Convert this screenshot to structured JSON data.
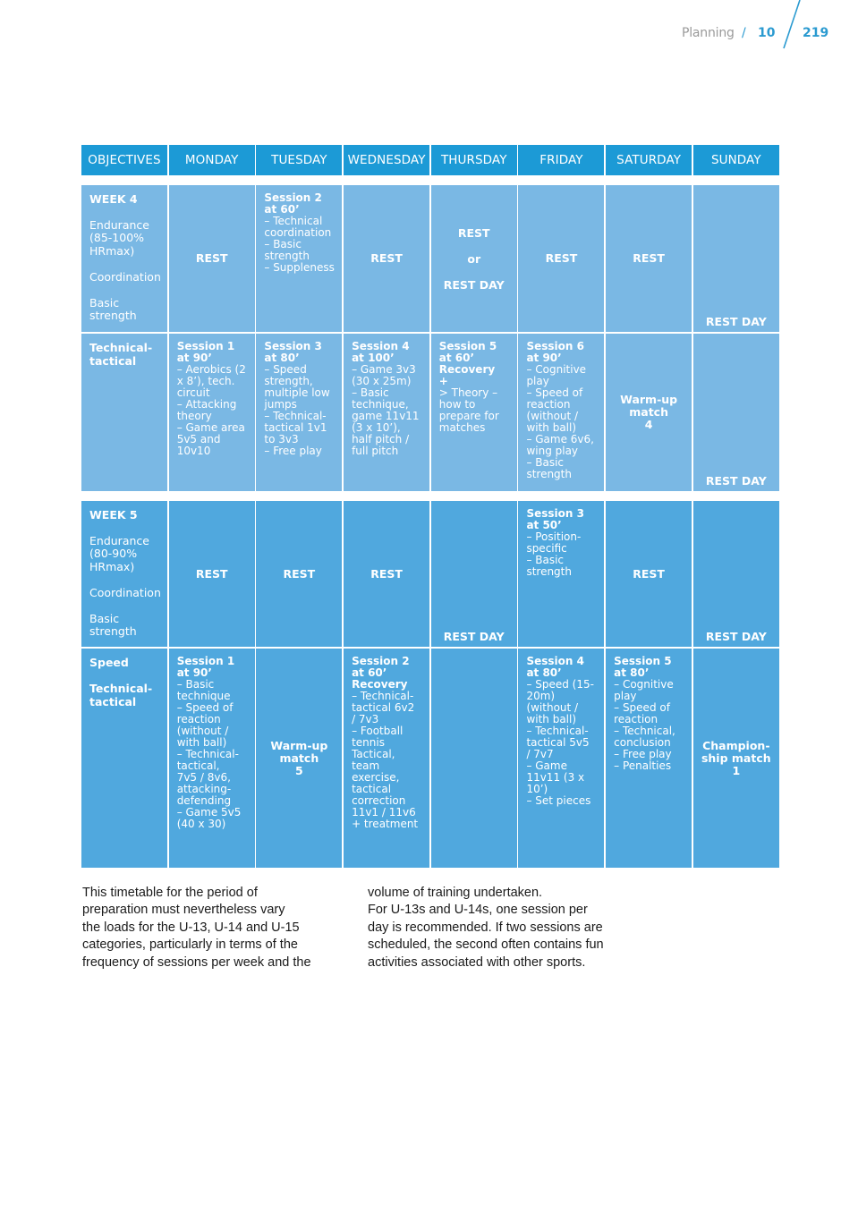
{
  "header": {
    "section": "Planning",
    "separator": "/",
    "chapter": "10",
    "page": "219"
  },
  "table": {
    "headers": [
      "OBJECTIVES",
      "MONDAY",
      "TUESDAY",
      "WEDNESDAY",
      "THURSDAY",
      "FRIDAY",
      "SATURDAY",
      "SUNDAY"
    ],
    "week4": {
      "row1": {
        "week": "WEEK 4",
        "objectives": "Endurance\n(85-100%\nHRmax)\n\nCoordination\n\nBasic\nstrength",
        "monday": "REST",
        "tuesday_title": "Session 2\nat 60’",
        "tuesday_body": "– Technical\ncoordination\n– Basic\nstrength\n– Suppleness",
        "wednesday": "REST",
        "thursday": "REST\nor\nREST DAY",
        "friday": "REST",
        "saturday": "REST",
        "sunday": "REST DAY"
      },
      "row2": {
        "objectives": "Technical-\ntactical",
        "monday_title": "Session 1\nat 90’",
        "monday_body": "– Aerobics (2\nx 8’), tech.\ncircuit\n– Attacking\ntheory\n– Game area\n5v5 and\n10v10",
        "tuesday_title": "Session 3\nat 80’",
        "tuesday_body": "– Speed\nstrength,\nmultiple low\njumps\n– Technical-\ntactical 1v1\nto 3v3\n– Free play",
        "wednesday_title": "Session 4\nat 100’",
        "wednesday_body": "– Game 3v3\n(30 x 25m)\n– Basic\ntechnique,\ngame 11v11\n(3 x 10’),\nhalf pitch /\nfull pitch",
        "thursday_title": "Session 5\nat 60’\nRecovery\n+",
        "thursday_body": "> Theory –\nhow to\nprepare for\nmatches",
        "friday_title": "Session 6\nat 90’",
        "friday_body": "– Cognitive\nplay\n– Speed of\nreaction\n(without /\nwith ball)\n– Game 6v6,\nwing play\n– Basic\nstrength",
        "saturday": "Warm-up\nmatch\n4",
        "sunday": "REST DAY"
      }
    },
    "week5": {
      "row1": {
        "week": "WEEK 5",
        "objectives": "Endurance\n(80-90%\nHRmax)\n\nCoordination\n\nBasic\nstrength",
        "monday": "REST",
        "tuesday": "REST",
        "wednesday": "REST",
        "thursday": "REST DAY",
        "friday_title": "Session 3\nat 50’",
        "friday_body": "– Position-\nspecific\n– Basic\nstrength",
        "saturday": "REST",
        "sunday": "REST DAY"
      },
      "row2": {
        "objectives": "Speed\n\nTechnical-\ntactical",
        "monday_title": "Session 1\nat 90’",
        "monday_body": "– Basic\ntechnique\n– Speed of\nreaction\n (without /\nwith ball)\n– Technical-\ntactical,\n7v5 / 8v6,\nattacking-\ndefending\n– Game 5v5\n(40 x 30)",
        "tuesday": "Warm-up\nmatch\n5",
        "wednesday_title": "Session 2\nat 60’\nRecovery",
        "wednesday_body": "– Technical-\ntactical 6v2\n/ 7v3\n– Football\ntennis\nTactical,\nteam\nexercise,\ntactical\ncorrection\n11v1 / 11v6\n+ treatment",
        "friday_title": "Session 4\nat 80’",
        "friday_body": "– Speed (15-\n20m)\n(without /\nwith ball)\n– Technical-\ntactical 5v5\n/ 7v7\n– Game\n11v11 (3 x\n10’)\n– Set pieces",
        "saturday_title": "Session 5\nat 80’",
        "saturday_body": "– Cognitive\nplay\n– Speed of\nreaction\n– Technical,\nconclusion\n– Free play\n– Penalties",
        "sunday": "Champion-\nship match\n1"
      }
    }
  },
  "text": {
    "col1": "This timetable for the period of\npreparation must nevertheless vary\nthe loads for the U-13, U-14 and U-15\ncategories, particularly in terms of the\nfrequency of sessions per week and the",
    "col2": "volume of training undertaken.\nFor U-13s and U-14s, one session per\nday is recommended. If two sessions are\nscheduled, the second often contains fun\nactivities associated with other sports."
  },
  "colors": {
    "header_blue": "#1c9ad6",
    "week4_light": "#7ab8e4",
    "week5_mid": "#50a8de",
    "accent": "#2a9ad0"
  }
}
